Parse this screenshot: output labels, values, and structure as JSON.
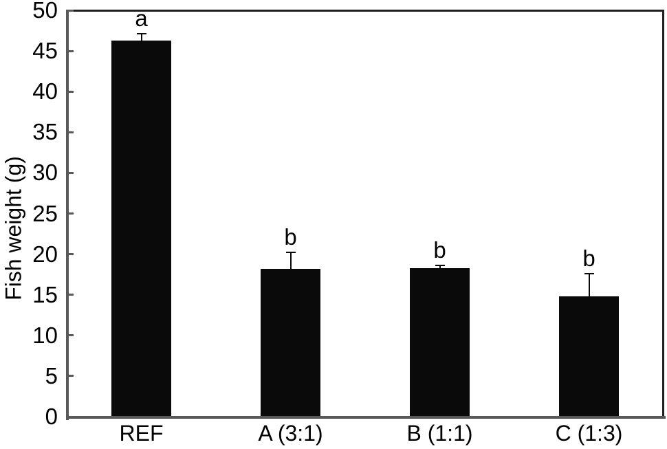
{
  "chart_data": {
    "type": "bar",
    "title": "",
    "ylabel": "Fish weight (g)",
    "xlabel": "",
    "categories": [
      "REF",
      "A (3:1)",
      "B (1:1)",
      "C (1:3)"
    ],
    "values": [
      46.3,
      18.2,
      18.3,
      14.8
    ],
    "errors_upper": [
      0.9,
      2.1,
      0.4,
      2.9
    ],
    "sig_letters": [
      "a",
      "b",
      "b",
      "b"
    ],
    "ylim": [
      0,
      50
    ],
    "ytick_step": 5,
    "yticks": [
      0,
      5,
      10,
      15,
      20,
      25,
      30,
      35,
      40,
      45,
      50
    ],
    "grid": false,
    "legend": null,
    "bar_color": "#0a0a0a",
    "axis_color": "#595959",
    "border_color": "#1f1f1f",
    "error_bar_color": "#0a0a0a",
    "text_color": "#000000"
  }
}
